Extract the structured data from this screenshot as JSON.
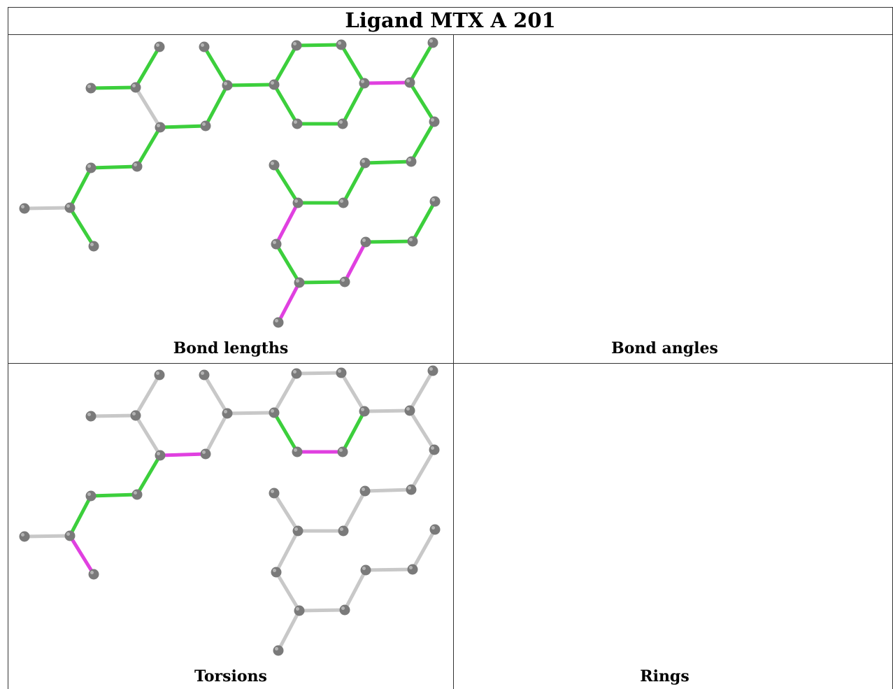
{
  "title": "Ligand MTX A 201",
  "colors": {
    "neutral_bond": "#c8c8c8",
    "ok_bond": "#3ccf3c",
    "outlier_bond": "#e040e0",
    "atom": "#7a7a7a"
  },
  "panels": [
    {
      "caption": "Bond lengths",
      "green": [
        "d0",
        "d1",
        "d4",
        "d5",
        "d6",
        "d7",
        "d8",
        "d9",
        "d10",
        "d11",
        "d12",
        "d13",
        "d14",
        "d15",
        "d16",
        "d17",
        "d19",
        "d20",
        "d21",
        "d22",
        "d23",
        "d24",
        "d25",
        "d27",
        "d28",
        "d30",
        "d31"
      ],
      "magenta": [
        "d18",
        "d26",
        "d29",
        "d32"
      ]
    },
    {
      "caption": "Bond angles",
      "green": [
        "d0",
        "d4",
        "d5",
        "d6",
        "d7",
        "d10",
        "d11",
        "d12",
        "d13",
        "d17"
      ],
      "magenta": [
        "d8",
        "d9",
        "d14",
        "d15",
        "d16",
        "d18",
        "d19",
        "d20",
        "d21",
        "d22",
        "d23",
        "d24",
        "d25",
        "d26",
        "d27",
        "d28",
        "d29",
        "d30",
        "d31",
        "d32"
      ]
    },
    {
      "caption": "Torsions",
      "green": [
        "d4",
        "d6",
        "d7",
        "d15",
        "d17"
      ],
      "magenta": [
        "d5",
        "d8",
        "d16"
      ]
    },
    {
      "caption": "Rings",
      "green": [
        "d10",
        "d11",
        "d12",
        "d13",
        "d14",
        "d19",
        "d20",
        "d21",
        "d22",
        "d23",
        "d24",
        "d25",
        "d26",
        "d27",
        "d28",
        "d29"
      ],
      "magenta": []
    }
  ]
}
